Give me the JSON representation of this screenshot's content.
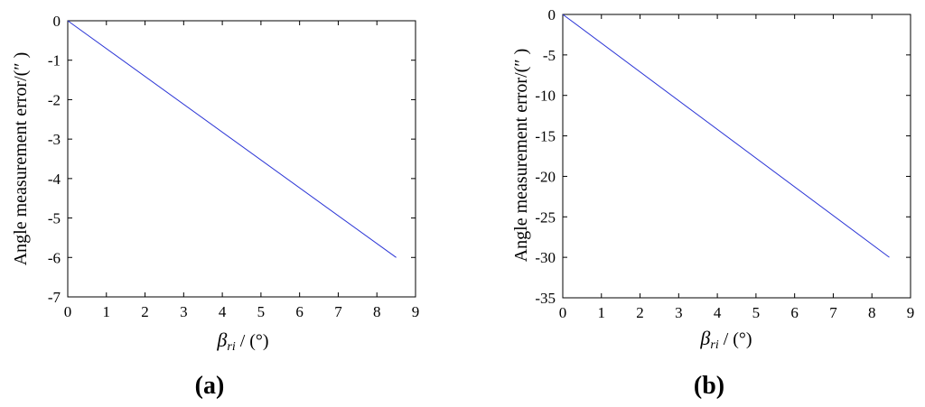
{
  "panels": [
    {
      "label": "(a)"
    },
    {
      "label": "(b)"
    }
  ],
  "chart_data": [
    {
      "type": "line",
      "title": "",
      "xlabel_symbol": "β",
      "xlabel_subscript": "ri",
      "xlabel_unit": " / (°)",
      "ylabel": "Angle measurement error/(″ )",
      "xlim": [
        0,
        9
      ],
      "ylim": [
        -7,
        0
      ],
      "xticks": [
        0,
        1,
        2,
        3,
        4,
        5,
        6,
        7,
        8,
        9
      ],
      "yticks": [
        0,
        -1,
        -2,
        -3,
        -4,
        -5,
        -6,
        -7
      ],
      "grid": false,
      "series": [
        {
          "color": "#2b35d6",
          "x": [
            0,
            8.5
          ],
          "y": [
            0,
            -6.0
          ]
        }
      ]
    },
    {
      "type": "line",
      "title": "",
      "xlabel_symbol": "β",
      "xlabel_subscript": "ri",
      "xlabel_unit": " / (°)",
      "ylabel": "Angle measurement error/(″ )",
      "xlim": [
        0,
        9
      ],
      "ylim": [
        -35,
        0
      ],
      "xticks": [
        0,
        1,
        2,
        3,
        4,
        5,
        6,
        7,
        8,
        9
      ],
      "yticks": [
        0,
        -5,
        -10,
        -15,
        -20,
        -25,
        -30,
        -35
      ],
      "grid": false,
      "series": [
        {
          "color": "#2b35d6",
          "x": [
            0,
            8.45
          ],
          "y": [
            0,
            -30.0
          ]
        }
      ]
    }
  ]
}
